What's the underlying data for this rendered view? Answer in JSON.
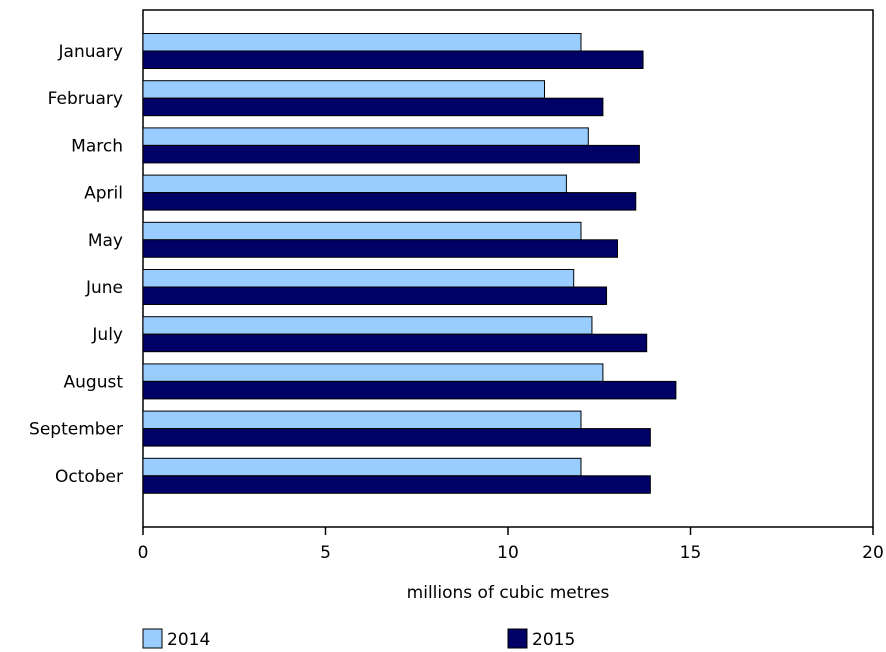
{
  "chart_data": {
    "type": "bar",
    "orientation": "horizontal",
    "categories": [
      "January",
      "February",
      "March",
      "April",
      "May",
      "June",
      "July",
      "August",
      "September",
      "October"
    ],
    "series": [
      {
        "name": "2014",
        "color": "#99ccff",
        "values": [
          12.0,
          11.0,
          12.2,
          11.6,
          12.0,
          11.8,
          12.3,
          12.6,
          12.0,
          12.0
        ]
      },
      {
        "name": "2015",
        "color": "#000066",
        "values": [
          13.7,
          12.6,
          13.6,
          13.5,
          13.0,
          12.7,
          13.8,
          14.6,
          13.9,
          13.9
        ]
      }
    ],
    "xlabel": "millions of cubic metres",
    "xlim": [
      0,
      20
    ],
    "xticks": [
      0,
      5,
      10,
      15,
      20
    ],
    "grid": false,
    "legend_position": "bottom"
  }
}
